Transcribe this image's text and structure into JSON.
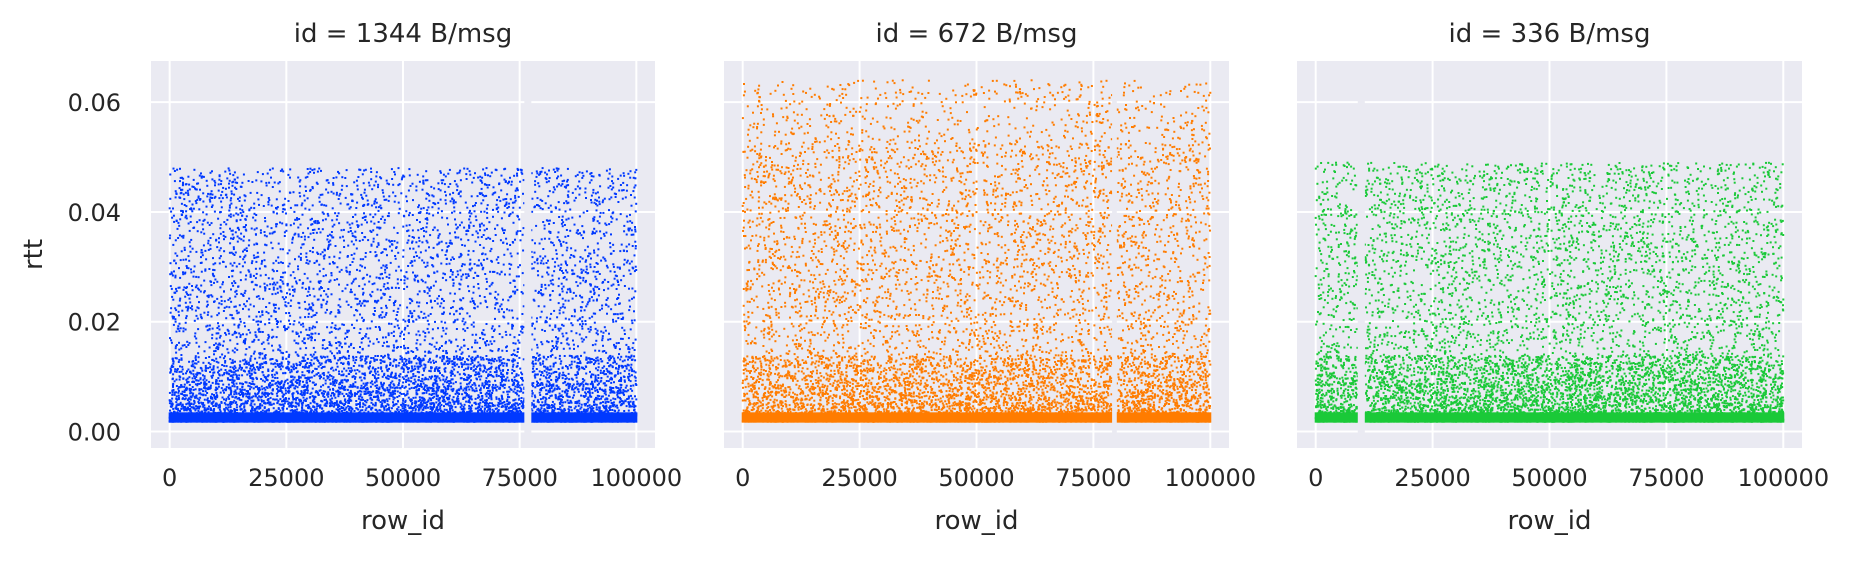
{
  "chart_data": [
    {
      "type": "scatter",
      "title": "id = 1344 B/msg",
      "xlabel": "row_id",
      "ylabel": "rtt",
      "xlim": [
        -4000,
        104000
      ],
      "ylim": [
        -0.003,
        0.0675
      ],
      "xticks": [
        0,
        25000,
        50000,
        75000,
        100000
      ],
      "xtick_labels": [
        "0",
        "25000",
        "50000",
        "75000",
        "100000"
      ],
      "yticks": [
        0.0,
        0.02,
        0.04,
        0.06
      ],
      "ytick_labels": [
        "0.00",
        "0.02",
        "0.04",
        "0.06"
      ],
      "grid": true,
      "background": "#eaeaf2",
      "color": "#0039ff",
      "series": [
        {
          "x_range": [
            0,
            100000
          ],
          "y_min": 0.0018,
          "y_max": 0.048,
          "gaps": [
            [
              76000,
              77500
            ]
          ]
        }
      ]
    },
    {
      "type": "scatter",
      "title": "id = 672 B/msg",
      "xlabel": "row_id",
      "ylabel": "",
      "xlim": [
        -4000,
        104000
      ],
      "ylim": [
        -0.003,
        0.0675
      ],
      "xticks": [
        0,
        25000,
        50000,
        75000,
        100000
      ],
      "xtick_labels": [
        "0",
        "25000",
        "50000",
        "75000",
        "100000"
      ],
      "yticks": [
        0.0,
        0.02,
        0.04,
        0.06
      ],
      "ytick_labels": [],
      "grid": true,
      "background": "#eaeaf2",
      "color": "#ff7c00",
      "series": [
        {
          "x_range": [
            0,
            100000
          ],
          "y_min": 0.0018,
          "y_max": 0.064,
          "dense_max": 0.0525,
          "gaps": [
            [
              79000,
              80000
            ]
          ]
        }
      ]
    },
    {
      "type": "scatter",
      "title": "id = 336 B/msg",
      "xlabel": "row_id",
      "ylabel": "",
      "xlim": [
        -4000,
        104000
      ],
      "ylim": [
        -0.003,
        0.0675
      ],
      "xticks": [
        0,
        25000,
        50000,
        75000,
        100000
      ],
      "xtick_labels": [
        "0",
        "25000",
        "50000",
        "75000",
        "100000"
      ],
      "yticks": [
        0.0,
        0.02,
        0.04,
        0.06
      ],
      "ytick_labels": [],
      "grid": true,
      "background": "#eaeaf2",
      "color": "#1ac938",
      "series": [
        {
          "x_range": [
            0,
            100000
          ],
          "y_min": 0.0018,
          "y_max": 0.049,
          "gaps": [
            [
              9000,
              10500
            ]
          ]
        }
      ]
    }
  ]
}
